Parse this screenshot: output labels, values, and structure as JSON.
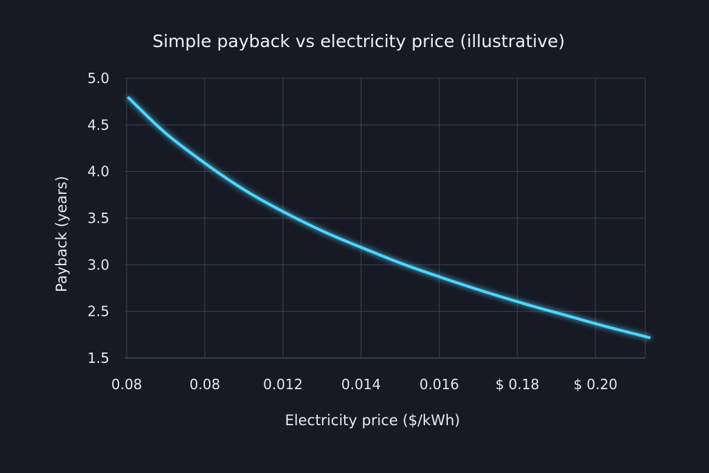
{
  "chart_data": {
    "type": "line",
    "title": "Simple payback vs electricity price (illustrative)",
    "xlabel": "Electricity price ($/kWh)",
    "ylabel": "Payback (years)",
    "x_tick_labels": [
      "0.08",
      "0.08",
      "0.012",
      "0.014",
      "0.016",
      "$ 0.18",
      "$ 0.20"
    ],
    "y_tick_labels": [
      "1.5",
      "2.5",
      "3.0",
      "3.5",
      "4.0",
      "4.5",
      "5.0"
    ],
    "xlim": [
      0.08,
      0.21
    ],
    "ylim": [
      2.0,
      5.0
    ],
    "grid": true,
    "legend": "none",
    "series": [
      {
        "color": "#4fd5ff",
        "x": [
          0.081,
          0.09,
          0.1,
          0.11,
          0.12,
          0.13,
          0.14,
          0.15,
          0.16,
          0.17,
          0.18,
          0.19,
          0.2,
          0.211
        ],
        "y": [
          4.79,
          4.42,
          4.09,
          3.8,
          3.56,
          3.35,
          3.17,
          3.0,
          2.85,
          2.71,
          2.58,
          2.46,
          2.34,
          2.22
        ]
      }
    ]
  },
  "colors": {
    "background": "#171a24",
    "grid": "#3b4150",
    "line": "#4fd5ff"
  }
}
